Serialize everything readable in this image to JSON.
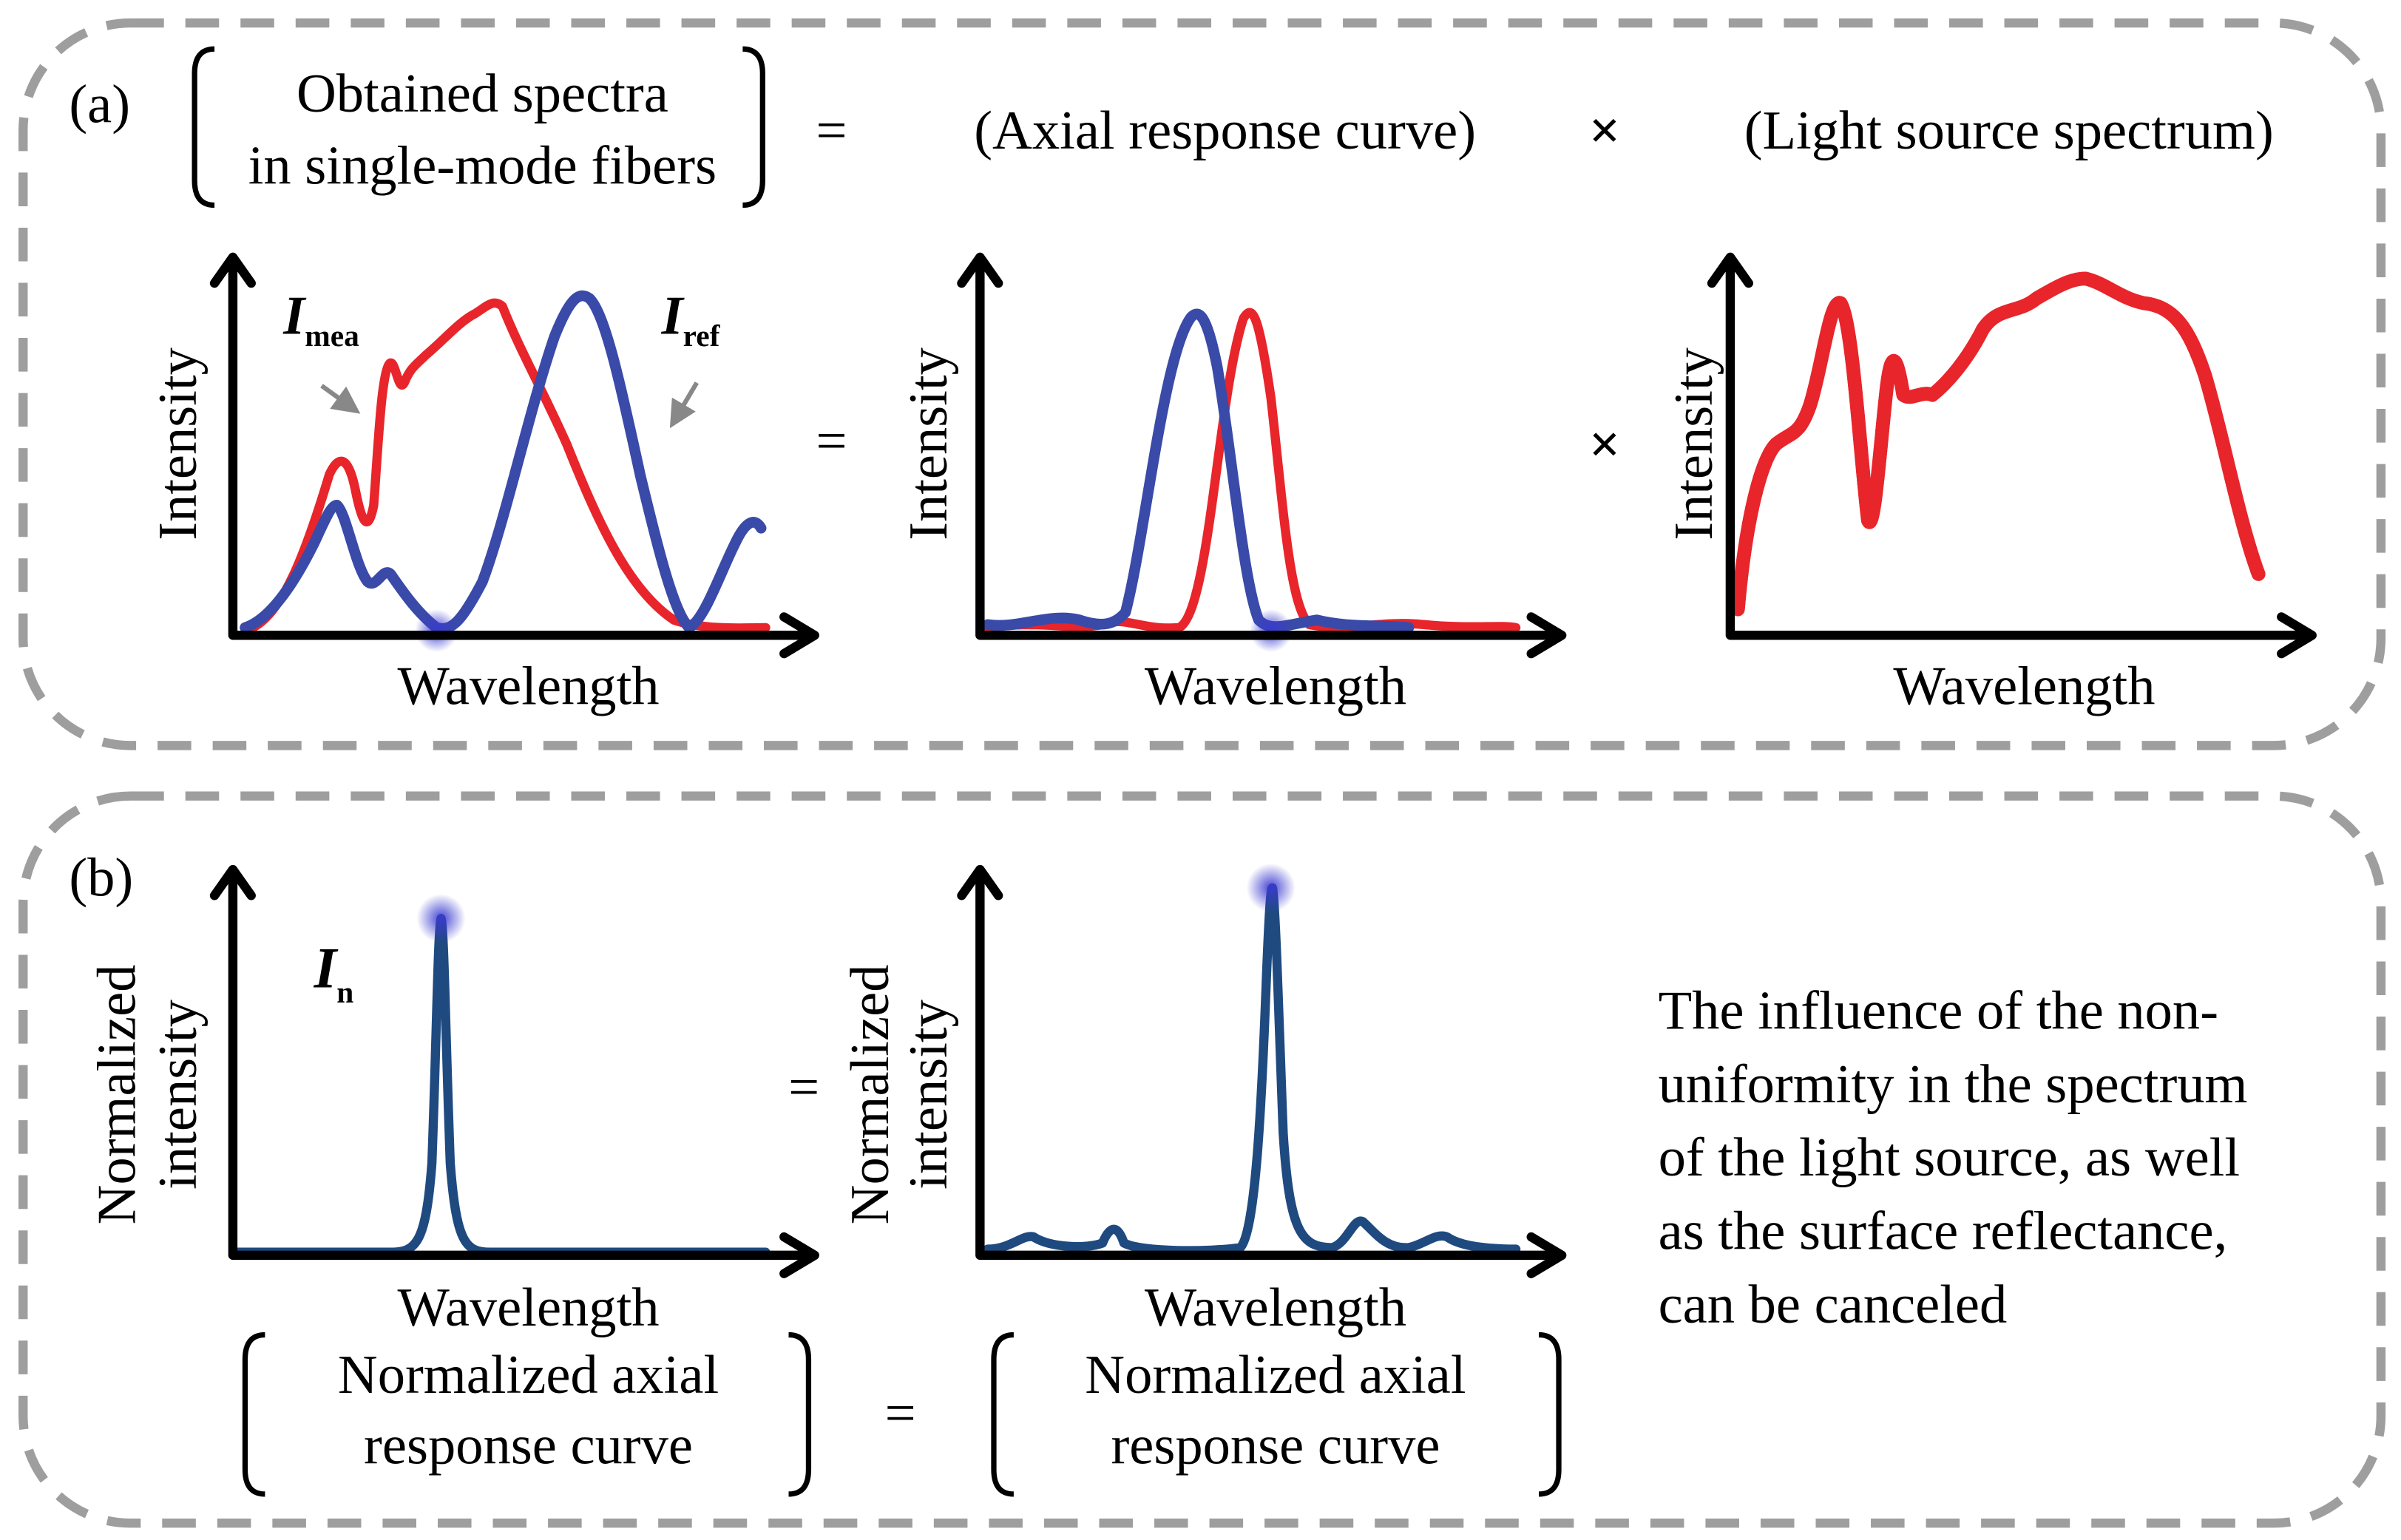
{
  "panel_a": {
    "label": "(a)",
    "eq_left": [
      "Obtained spectra",
      "in single-mode fibers"
    ],
    "eq_sign": "=",
    "eq_middle": "(Axial response curve)",
    "times_sign": "×",
    "eq_right": "(Light source spectrum)",
    "plot1": {
      "ylabel": "Intensity",
      "xlabel": "Wavelength",
      "mea_main": "I",
      "mea_sub": "mea",
      "ref_main": "I",
      "ref_sub": "ref"
    },
    "plot2": {
      "ylabel": "Intensity",
      "xlabel": "Wavelength"
    },
    "plot3": {
      "ylabel": "Intensity",
      "xlabel": "Wavelength"
    },
    "eq_sign2": "=",
    "times_sign2": "×"
  },
  "panel_b": {
    "label": "(b)",
    "plot1": {
      "ylabel": [
        "Normalized",
        "intensity"
      ],
      "xlabel": "Wavelength",
      "n_main": "I",
      "n_sub": "n"
    },
    "plot2": {
      "ylabel": [
        "Normalized",
        "intensity"
      ],
      "xlabel": "Wavelength"
    },
    "eq_sign": "=",
    "caption_left": [
      "Normalized axial",
      "response curve"
    ],
    "caption_sign": "=",
    "caption_right": [
      "Normalized axial",
      "response curve"
    ],
    "note": [
      "The influence of the non-",
      "uniformity in the spectrum",
      "of the light source,  as well",
      "as the surface reflectance,",
      "can be canceled"
    ]
  },
  "colors": {
    "measured": "#e8252b",
    "reference": "#3a4aa8",
    "normalized": "#1f4a80",
    "frame": "#9e9e9e"
  }
}
